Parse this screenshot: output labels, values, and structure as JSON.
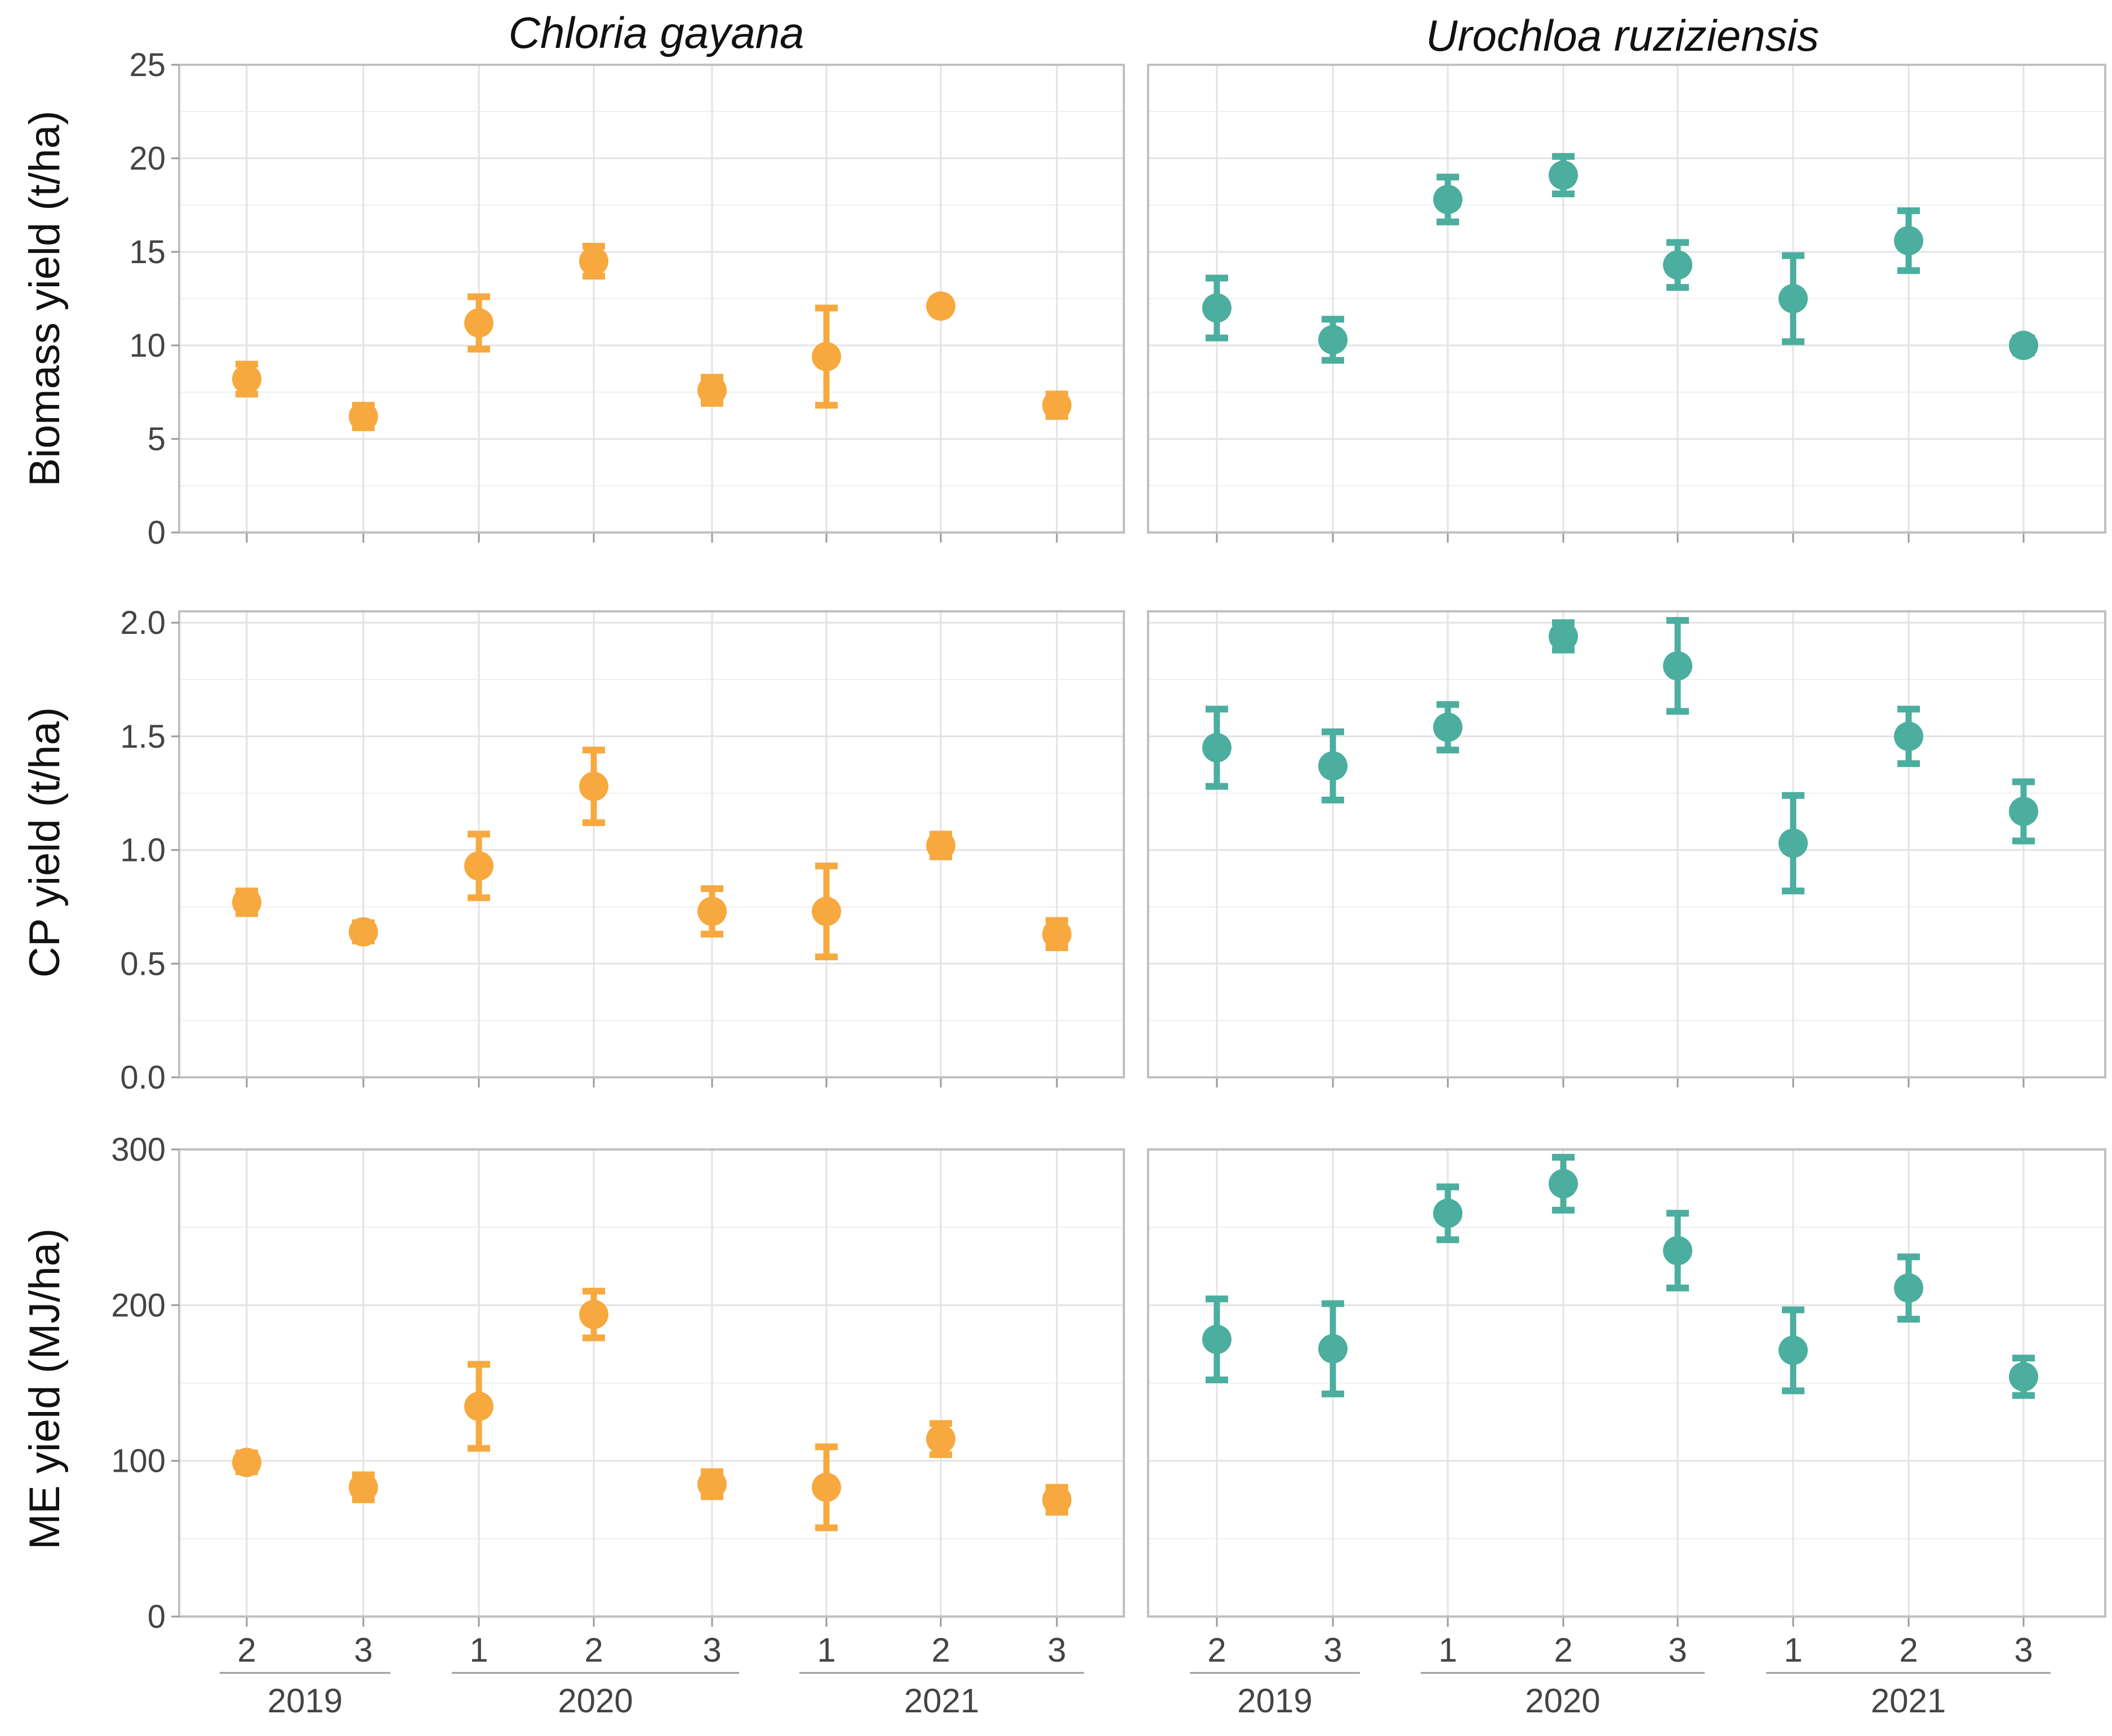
{
  "colors": {
    "chloris": "#F7A93F",
    "urochloa": "#4BAE9E"
  },
  "columns": [
    {
      "title": "Chloria gayana",
      "color_key": "chloris"
    },
    {
      "title": "Urochloa ruziziensis",
      "color_key": "urochloa"
    }
  ],
  "rows": [
    {
      "ylabel": "Biomass yield (t/ha)",
      "ylim": [
        0,
        25
      ],
      "ticks": [
        "0",
        "5",
        "10",
        "15",
        "20",
        "25"
      ],
      "tick_values": [
        0,
        5,
        10,
        15,
        20,
        25
      ]
    },
    {
      "ylabel": "CP yield (t/ha)",
      "ylim": [
        0,
        2.05
      ],
      "ticks": [
        "0.0",
        "0.5",
        "1.0",
        "1.5",
        "2.0"
      ],
      "tick_values": [
        0,
        0.5,
        1.0,
        1.5,
        2.0
      ]
    },
    {
      "ylabel": "ME yield (MJ/ha)",
      "ylim": [
        0,
        300
      ],
      "ticks": [
        "0",
        "100",
        "200",
        "300"
      ],
      "tick_values": [
        0,
        100,
        200,
        300
      ]
    }
  ],
  "x_axis": {
    "harvest_labels": [
      "2",
      "3",
      "1",
      "2",
      "3",
      "1",
      "2",
      "3"
    ],
    "years": [
      {
        "label": "2019",
        "span": [
          0,
          1
        ]
      },
      {
        "label": "2020",
        "span": [
          2,
          4
        ]
      },
      {
        "label": "2021",
        "span": [
          5,
          7
        ]
      }
    ]
  },
  "chart_data": [
    {
      "type": "scatter",
      "panel": "Biomass yield - Chloria gayana",
      "title": "Chloria gayana",
      "ylabel": "Biomass yield (t/ha)",
      "ylim": [
        0,
        25
      ],
      "categories": [
        "2019-2",
        "2019-3",
        "2020-1",
        "2020-2",
        "2020-3",
        "2021-1",
        "2021-2",
        "2021-3"
      ],
      "values": [
        8.2,
        6.2,
        11.2,
        14.5,
        7.6,
        9.4,
        12.1,
        6.8
      ],
      "err": [
        0.8,
        0.6,
        1.4,
        0.8,
        0.7,
        2.6,
        0.3,
        0.6
      ]
    },
    {
      "type": "scatter",
      "panel": "Biomass yield - Urochloa ruziziensis",
      "title": "Urochloa ruziziensis",
      "ylabel": "Biomass yield (t/ha)",
      "ylim": [
        0,
        25
      ],
      "categories": [
        "2019-2",
        "2019-3",
        "2020-1",
        "2020-2",
        "2020-3",
        "2021-1",
        "2021-2",
        "2021-3"
      ],
      "values": [
        12.0,
        10.3,
        17.8,
        19.1,
        14.3,
        12.5,
        15.6,
        10.0
      ],
      "err": [
        1.6,
        1.1,
        1.2,
        1.0,
        1.2,
        2.3,
        1.6,
        0.4
      ]
    },
    {
      "type": "scatter",
      "panel": "CP yield - Chloria gayana",
      "title": "Chloria gayana",
      "ylabel": "CP yield (t/ha)",
      "ylim": [
        0,
        2.0
      ],
      "categories": [
        "2019-2",
        "2019-3",
        "2020-1",
        "2020-2",
        "2020-3",
        "2021-1",
        "2021-2",
        "2021-3"
      ],
      "values": [
        0.77,
        0.64,
        0.93,
        1.28,
        0.73,
        0.73,
        1.02,
        0.63
      ],
      "err": [
        0.05,
        0.04,
        0.14,
        0.16,
        0.1,
        0.2,
        0.05,
        0.06
      ]
    },
    {
      "type": "scatter",
      "panel": "CP yield - Urochloa ruziziensis",
      "title": "Urochloa ruziziensis",
      "ylabel": "CP yield (t/ha)",
      "ylim": [
        0,
        2.0
      ],
      "categories": [
        "2019-2",
        "2019-3",
        "2020-1",
        "2020-2",
        "2020-3",
        "2021-1",
        "2021-2",
        "2021-3"
      ],
      "values": [
        1.45,
        1.37,
        1.54,
        1.94,
        1.81,
        1.03,
        1.5,
        1.17
      ],
      "err": [
        0.17,
        0.15,
        0.1,
        0.06,
        0.2,
        0.21,
        0.12,
        0.13
      ]
    },
    {
      "type": "scatter",
      "panel": "ME yield - Chloria gayana",
      "title": "Chloria gayana",
      "ylabel": "ME yield (MJ/ha)",
      "ylim": [
        0,
        300
      ],
      "categories": [
        "2019-2",
        "2019-3",
        "2020-1",
        "2020-2",
        "2020-3",
        "2021-1",
        "2021-2",
        "2021-3"
      ],
      "values": [
        99,
        83,
        135,
        194,
        85,
        83,
        114,
        75
      ],
      "err": [
        6,
        8,
        27,
        15,
        8,
        26,
        10,
        8
      ]
    },
    {
      "type": "scatter",
      "panel": "ME yield - Urochloa ruziziensis",
      "title": "Urochloa ruziziensis",
      "ylabel": "ME yield (MJ/ha)",
      "ylim": [
        0,
        300
      ],
      "categories": [
        "2019-2",
        "2019-3",
        "2020-1",
        "2020-2",
        "2020-3",
        "2021-1",
        "2021-2",
        "2021-3"
      ],
      "values": [
        178,
        172,
        259,
        278,
        235,
        171,
        211,
        154
      ],
      "err": [
        26,
        29,
        17,
        17,
        24,
        26,
        20,
        12
      ]
    }
  ]
}
